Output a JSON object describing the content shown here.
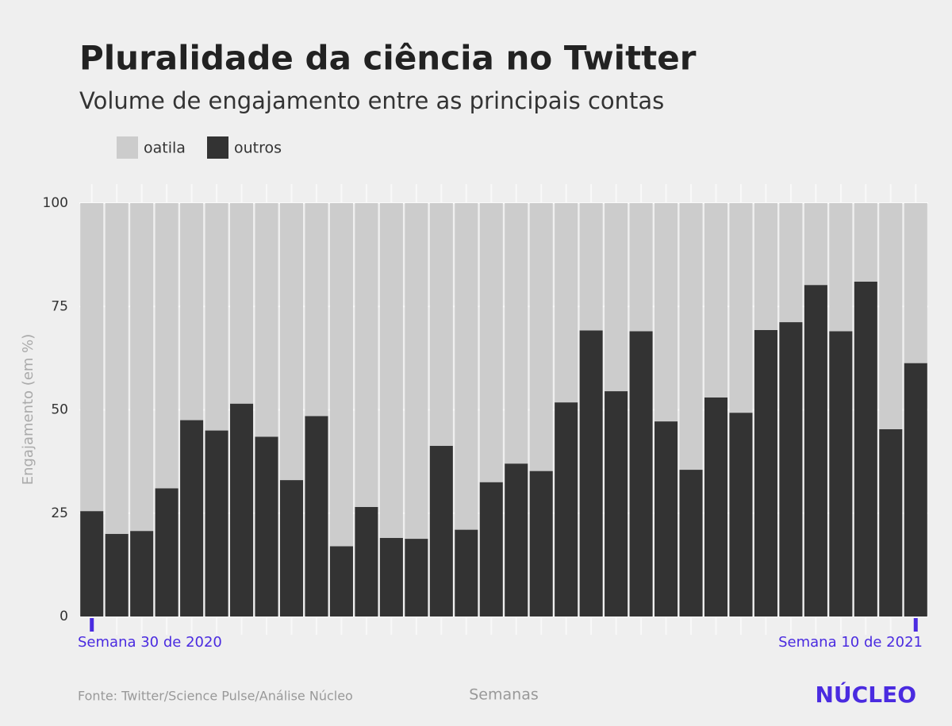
{
  "chart_data": {
    "type": "stacked_bar",
    "title": "Pluralidade da ciência no Twitter",
    "subtitle": "Volume de engajamento entre as principais contas",
    "y_label": "Engajamento (em %)",
    "x_label": "Semanas",
    "source": "Fonte: Twitter/Science Pulse/Análise Núcleo",
    "logo": "NÚCLEO",
    "categories": [
      "Semana 30 de 2020",
      null,
      null,
      null,
      null,
      null,
      null,
      null,
      null,
      null,
      null,
      null,
      null,
      null,
      null,
      null,
      null,
      null,
      null,
      null,
      null,
      null,
      null,
      null,
      null,
      null,
      null,
      null,
      null,
      null,
      null,
      null,
      null,
      "Semana 10 de 2021"
    ],
    "series": [
      {
        "name": "oatila",
        "color": "#cccccc",
        "values": [
          74.5,
          80,
          79.3,
          69,
          52.5,
          55,
          48.5,
          56.5,
          67,
          51.5,
          83,
          73.5,
          81,
          81.2,
          58.7,
          79,
          67.5,
          63,
          64.8,
          48.2,
          30.8,
          45.5,
          31,
          52.8,
          64.5,
          47,
          50.7,
          30.7,
          28.8,
          19.8,
          31,
          19,
          54.7,
          38.7
        ]
      },
      {
        "name": "outros",
        "color": "#333333",
        "values": [
          25.5,
          20,
          20.7,
          31,
          47.5,
          45,
          51.5,
          43.5,
          33,
          48.5,
          17,
          26.5,
          19,
          18.8,
          41.3,
          21,
          32.5,
          37,
          35.2,
          51.8,
          69.2,
          54.5,
          69,
          47.2,
          35.5,
          53,
          49.3,
          69.3,
          71.2,
          80.2,
          69,
          81,
          45.3,
          61.3
        ]
      }
    ],
    "ylim": [
      0,
      100
    ],
    "yticks": [
      0,
      25,
      50,
      75,
      100
    ],
    "grid": true,
    "legend": "top-left"
  }
}
